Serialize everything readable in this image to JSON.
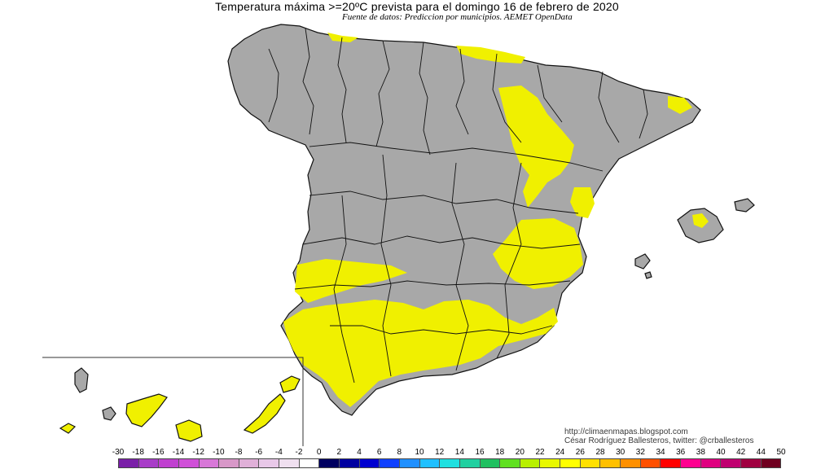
{
  "title": "Temperatura máxima >=20ºC prevista para el domingo 16 de febrero de 2020",
  "subtitle": "Fuente de datos: Prediccion por municipios. AEMET OpenData",
  "credits": {
    "url": "http://climaenmapas.blogspot.com",
    "author": "César Rodríguez Ballesteros, twitter: @crballesteros"
  },
  "legend": {
    "labels": [
      "-30",
      "-18",
      "-16",
      "-14",
      "-12",
      "-10",
      "-8",
      "-6",
      "-4",
      "-2",
      "0",
      "2",
      "4",
      "6",
      "8",
      "10",
      "12",
      "14",
      "16",
      "18",
      "20",
      "22",
      "24",
      "26",
      "28",
      "30",
      "32",
      "34",
      "36",
      "38",
      "40",
      "42",
      "44",
      "50"
    ],
    "colors": [
      "#7a1fa8",
      "#a83cc8",
      "#c040d0",
      "#d050d8",
      "#d878d8",
      "#d898c8",
      "#e0b0d8",
      "#e8c8e8",
      "#f0e0f0",
      "#ffffff",
      "#000060",
      "#0000a0",
      "#0000d0",
      "#1040ff",
      "#2090ff",
      "#20c0ff",
      "#20e0e0",
      "#20d0a0",
      "#20c060",
      "#60e020",
      "#b8f000",
      "#e8f800",
      "#ffff00",
      "#ffe000",
      "#ffc000",
      "#ff9000",
      "#ff5000",
      "#ff0000",
      "#ff0090",
      "#e00080",
      "#c00070",
      "#a00040",
      "#700020"
    ]
  },
  "map": {
    "land_color": "#a8a8a8",
    "highlight_color": "#f0f000",
    "border_color": "#111111",
    "inset_frame": "canarias"
  }
}
